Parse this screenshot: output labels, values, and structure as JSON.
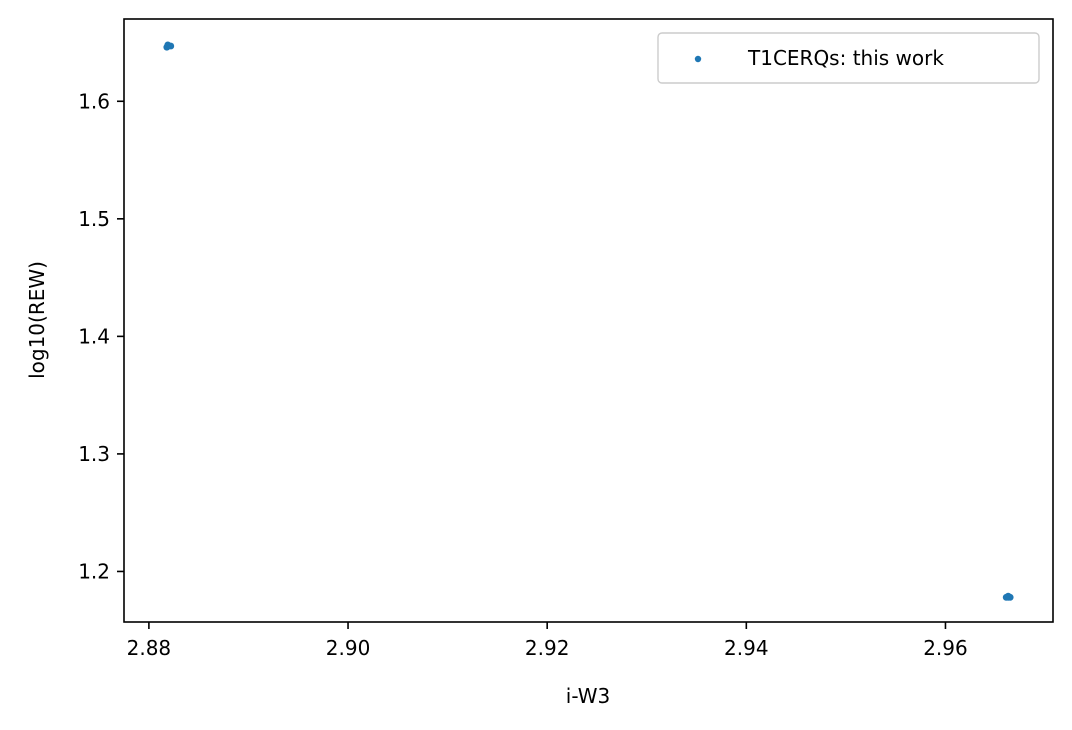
{
  "chart_data": {
    "type": "scatter",
    "title": "",
    "xlabel": "i-W3",
    "ylabel": "log10(REW)",
    "xlim": [
      2.8775,
      2.9708
    ],
    "ylim": [
      1.157,
      1.67
    ],
    "xticks": [
      2.88,
      2.9,
      2.92,
      2.94,
      2.96
    ],
    "xtick_labels": [
      "2.88",
      "2.90",
      "2.92",
      "2.94",
      "2.96"
    ],
    "yticks": [
      1.2,
      1.3,
      1.4,
      1.5,
      1.6
    ],
    "ytick_labels": [
      "1.2",
      "1.3",
      "1.4",
      "1.5",
      "1.6"
    ],
    "grid": false,
    "legend_position": "top-right",
    "series": [
      {
        "name": "T1CERQs: this work",
        "color": "#1f77b4",
        "marker": "circle",
        "points": [
          {
            "x": 2.8819,
            "y": 1.647
          },
          {
            "x": 2.8819,
            "y": 1.648
          },
          {
            "x": 2.8822,
            "y": 1.647
          },
          {
            "x": 2.8818,
            "y": 1.646
          },
          {
            "x": 2.9663,
            "y": 1.178
          },
          {
            "x": 2.9663,
            "y": 1.179
          },
          {
            "x": 2.9665,
            "y": 1.178
          },
          {
            "x": 2.9661,
            "y": 1.178
          }
        ]
      }
    ]
  }
}
